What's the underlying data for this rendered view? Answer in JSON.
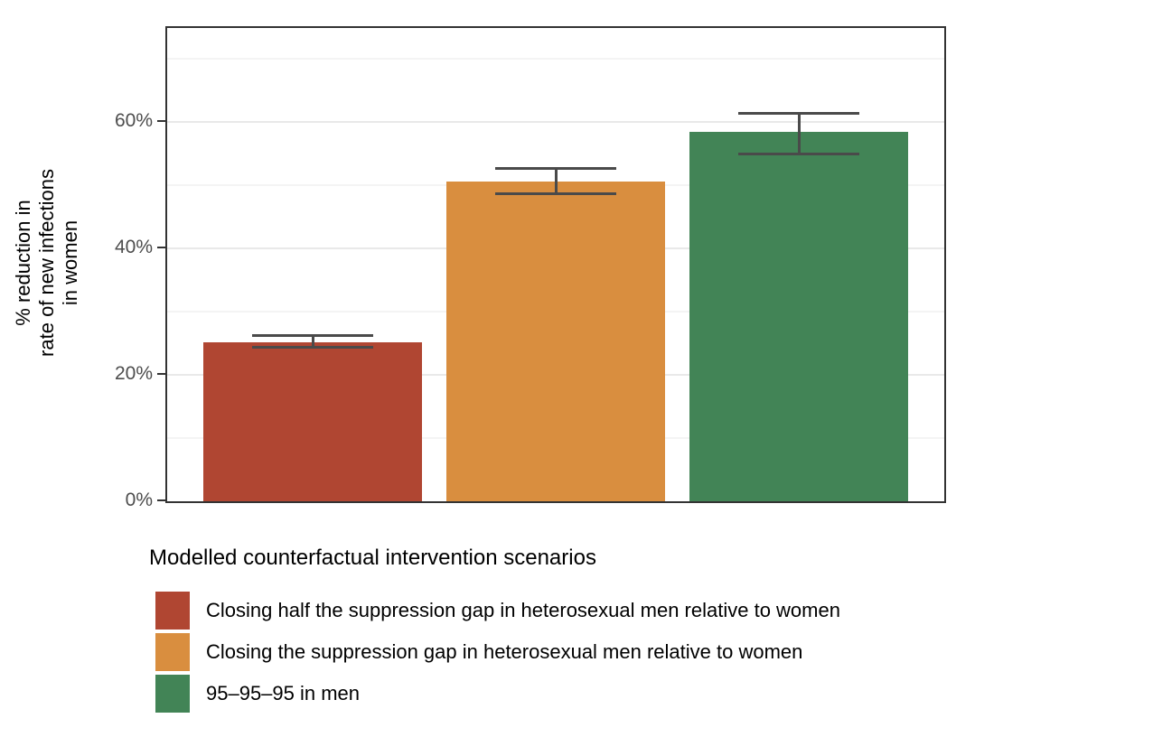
{
  "chart_data": {
    "type": "bar",
    "title": "",
    "xlabel": "",
    "ylabel": "% reduction in rate of new infections in women",
    "ylabel_lines": [
      "% reduction in",
      "rate of new infections",
      "in women"
    ],
    "categories": [
      "Closing half the suppression gap in heterosexual men relative to women",
      "Closing the suppression gap in heterosexual men relative to women",
      "95–95–95 in men"
    ],
    "values": [
      25.1,
      50.6,
      58.4
    ],
    "error_low": [
      24.3,
      48.6,
      54.9
    ],
    "error_high": [
      26.3,
      52.7,
      61.4
    ],
    "bar_colors": [
      "#b04632",
      "#d98e3f",
      "#428456"
    ],
    "ylim": [
      0,
      74.9
    ],
    "yticks": [
      {
        "value": 0,
        "label": "0%"
      },
      {
        "value": 20,
        "label": "20%"
      },
      {
        "value": 40,
        "label": "40%"
      },
      {
        "value": 60,
        "label": "60%"
      }
    ],
    "grid_major": [
      20,
      40,
      60
    ],
    "grid_minor": [
      10,
      30,
      50,
      70
    ],
    "grid_on": true,
    "legend": {
      "position": "bottom-left",
      "title": "Modelled counterfactual intervention scenarios"
    },
    "style_colors": {
      "panel_border": "#333333",
      "error_bar": "#4a4a4a",
      "tick_text": "#4d4d4d",
      "grid_major": "#e9e9e9",
      "grid_minor": "#f4f4f4",
      "background": "#ffffff"
    }
  }
}
